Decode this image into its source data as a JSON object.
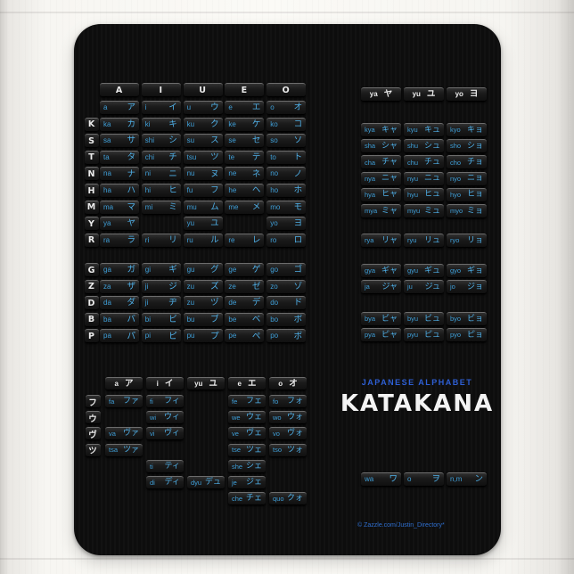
{
  "colors": {
    "romaji_blue": "#3f9fd8",
    "kana_blue": "#4fb0e8",
    "header_text": "#ececec",
    "accent_blue": "#2e5fd4",
    "copyright_blue": "#2f6fd0",
    "pad_black": "#0d0d0d",
    "background_white": "#f8f7f3"
  },
  "main": {
    "col_headers": [
      "A",
      "I",
      "U",
      "E",
      "O"
    ],
    "rows": [
      {
        "letter": "",
        "cells": [
          [
            "a",
            "ア"
          ],
          [
            "i",
            "イ"
          ],
          [
            "u",
            "ウ"
          ],
          [
            "e",
            "エ"
          ],
          [
            "o",
            "オ"
          ]
        ]
      },
      {
        "letter": "K",
        "cells": [
          [
            "ka",
            "カ"
          ],
          [
            "ki",
            "キ"
          ],
          [
            "ku",
            "ク"
          ],
          [
            "ke",
            "ケ"
          ],
          [
            "ko",
            "コ"
          ]
        ]
      },
      {
        "letter": "S",
        "cells": [
          [
            "sa",
            "サ"
          ],
          [
            "shi",
            "シ"
          ],
          [
            "su",
            "ス"
          ],
          [
            "se",
            "セ"
          ],
          [
            "so",
            "ソ"
          ]
        ]
      },
      {
        "letter": "T",
        "cells": [
          [
            "ta",
            "タ"
          ],
          [
            "chi",
            "チ"
          ],
          [
            "tsu",
            "ツ"
          ],
          [
            "te",
            "テ"
          ],
          [
            "to",
            "ト"
          ]
        ]
      },
      {
        "letter": "N",
        "cells": [
          [
            "na",
            "ナ"
          ],
          [
            "ni",
            "ニ"
          ],
          [
            "nu",
            "ヌ"
          ],
          [
            "ne",
            "ネ"
          ],
          [
            "no",
            "ノ"
          ]
        ]
      },
      {
        "letter": "H",
        "cells": [
          [
            "ha",
            "ハ"
          ],
          [
            "hi",
            "ヒ"
          ],
          [
            "fu",
            "フ"
          ],
          [
            "he",
            "ヘ"
          ],
          [
            "ho",
            "ホ"
          ]
        ]
      },
      {
        "letter": "M",
        "cells": [
          [
            "ma",
            "マ"
          ],
          [
            "mi",
            "ミ"
          ],
          [
            "mu",
            "ム"
          ],
          [
            "me",
            "メ"
          ],
          [
            "mo",
            "モ"
          ]
        ]
      },
      {
        "letter": "Y",
        "cells": [
          [
            "ya",
            "ヤ"
          ],
          null,
          [
            "yu",
            "ユ"
          ],
          null,
          [
            "yo",
            "ヨ"
          ]
        ]
      },
      {
        "letter": "R",
        "cells": [
          [
            "ra",
            "ラ"
          ],
          [
            "ri",
            "リ"
          ],
          [
            "ru",
            "ル"
          ],
          [
            "re",
            "レ"
          ],
          [
            "ro",
            "ロ"
          ]
        ]
      }
    ],
    "dakuten_rows": [
      {
        "letter": "G",
        "cells": [
          [
            "ga",
            "ガ"
          ],
          [
            "gi",
            "ギ"
          ],
          [
            "gu",
            "グ"
          ],
          [
            "ge",
            "ゲ"
          ],
          [
            "go",
            "ゴ"
          ]
        ]
      },
      {
        "letter": "Z",
        "cells": [
          [
            "za",
            "ザ"
          ],
          [
            "ji",
            "ジ"
          ],
          [
            "zu",
            "ズ"
          ],
          [
            "ze",
            "ゼ"
          ],
          [
            "zo",
            "ゾ"
          ]
        ]
      },
      {
        "letter": "D",
        "cells": [
          [
            "da",
            "ダ"
          ],
          [
            "ji",
            "ヂ"
          ],
          [
            "zu",
            "ヅ"
          ],
          [
            "de",
            "デ"
          ],
          [
            "do",
            "ド"
          ]
        ]
      },
      {
        "letter": "B",
        "cells": [
          [
            "ba",
            "バ"
          ],
          [
            "bi",
            "ビ"
          ],
          [
            "bu",
            "ブ"
          ],
          [
            "be",
            "ベ"
          ],
          [
            "bo",
            "ボ"
          ]
        ]
      },
      {
        "letter": "P",
        "cells": [
          [
            "pa",
            "パ"
          ],
          [
            "pi",
            "ピ"
          ],
          [
            "pu",
            "プ"
          ],
          [
            "pe",
            "ペ"
          ],
          [
            "po",
            "ポ"
          ]
        ]
      }
    ]
  },
  "yoon": {
    "col_headers": [
      [
        "ya",
        "ヤ"
      ],
      [
        "yu",
        "ユ"
      ],
      [
        "yo",
        "ヨ"
      ]
    ],
    "groups": [
      [
        [
          [
            "kya",
            "キャ"
          ],
          [
            "kyu",
            "キュ"
          ],
          [
            "kyo",
            "キョ"
          ]
        ],
        [
          [
            "sha",
            "シャ"
          ],
          [
            "shu",
            "シュ"
          ],
          [
            "sho",
            "ショ"
          ]
        ],
        [
          [
            "cha",
            "チャ"
          ],
          [
            "chu",
            "チュ"
          ],
          [
            "cho",
            "チョ"
          ]
        ],
        [
          [
            "nya",
            "ニャ"
          ],
          [
            "nyu",
            "ニュ"
          ],
          [
            "nyo",
            "ニョ"
          ]
        ],
        [
          [
            "hya",
            "ヒャ"
          ],
          [
            "hyu",
            "ヒュ"
          ],
          [
            "hyo",
            "ヒョ"
          ]
        ],
        [
          [
            "mya",
            "ミャ"
          ],
          [
            "myu",
            "ミュ"
          ],
          [
            "myo",
            "ミョ"
          ]
        ]
      ],
      [
        [
          [
            "rya",
            "リャ"
          ],
          [
            "ryu",
            "リュ"
          ],
          [
            "ryo",
            "リョ"
          ]
        ]
      ],
      [
        [
          [
            "gya",
            "ギャ"
          ],
          [
            "gyu",
            "ギュ"
          ],
          [
            "gyo",
            "ギョ"
          ]
        ],
        [
          [
            "ja",
            "ジャ"
          ],
          [
            "ju",
            "ジュ"
          ],
          [
            "jo",
            "ジョ"
          ]
        ]
      ],
      [
        [
          [
            "bya",
            "ビャ"
          ],
          [
            "byu",
            "ビュ"
          ],
          [
            "byo",
            "ビョ"
          ]
        ],
        [
          [
            "pya",
            "ピャ"
          ],
          [
            "pyu",
            "ピュ"
          ],
          [
            "pyo",
            "ピョ"
          ]
        ]
      ]
    ]
  },
  "extended": {
    "col_headers": [
      [
        "a",
        "ア"
      ],
      [
        "i",
        "イ"
      ],
      [
        "yu",
        "ユ"
      ],
      [
        "e",
        "エ"
      ],
      [
        "o",
        "オ"
      ]
    ],
    "row_labels": [
      "フ",
      "ウ",
      "ヴ",
      "ツ",
      "",
      "",
      ""
    ],
    "rows": [
      [
        [
          "fa",
          "ファ"
        ],
        [
          "fi",
          "フィ"
        ],
        null,
        [
          "fe",
          "フェ"
        ],
        [
          "fo",
          "フォ"
        ]
      ],
      [
        null,
        [
          "wi",
          "ウィ"
        ],
        null,
        [
          "we",
          "ウェ"
        ],
        [
          "wo",
          "ウォ"
        ]
      ],
      [
        [
          "va",
          "ヴァ"
        ],
        [
          "vi",
          "ヴィ"
        ],
        null,
        [
          "ve",
          "ヴェ"
        ],
        [
          "vo",
          "ヴォ"
        ]
      ],
      [
        [
          "tsa",
          "ツァ"
        ],
        null,
        null,
        [
          "tse",
          "ツェ"
        ],
        [
          "tso",
          "ツォ"
        ]
      ],
      [
        null,
        [
          "ti",
          "ティ"
        ],
        null,
        [
          "she",
          "シェ"
        ],
        null
      ],
      [
        null,
        [
          "di",
          "ディ"
        ],
        [
          "dyu",
          "デュ"
        ],
        [
          "je",
          "ジェ"
        ],
        null
      ],
      [
        null,
        null,
        null,
        [
          "che",
          "チェ"
        ],
        [
          "quo",
          "クォ"
        ]
      ]
    ]
  },
  "wa_row": [
    [
      "wa",
      "ワ"
    ],
    [
      "o",
      "ヲ"
    ],
    [
      "n,m",
      "ン"
    ]
  ],
  "titles": {
    "subtitle": "JAPANESE ALPHABET",
    "title": "KATAKANA"
  },
  "copyright": "© Zazzle.com/Justin_Directory*"
}
